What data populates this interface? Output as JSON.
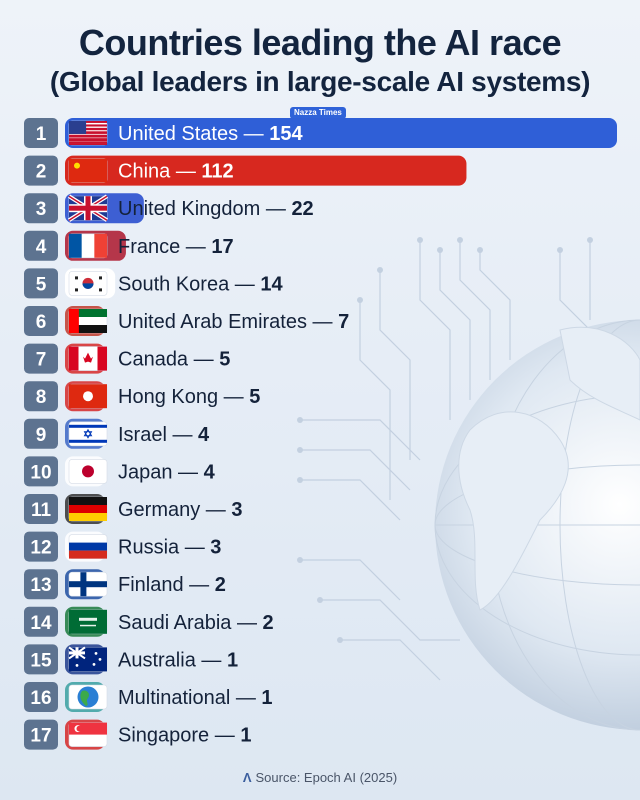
{
  "header": {
    "title": "Countries leading the AI race",
    "subtitle": "(Global leaders in large-scale AI systems)",
    "badge": "Nazza Times"
  },
  "footer": {
    "source": "Source: Epoch AI (2025)",
    "source_icon": "epoch-logo-icon"
  },
  "colors": {
    "united_states": "#2f5fd7",
    "china": "#d7281f",
    "united_kingdom": "#3d5fd3",
    "rank_box": "#5d7390",
    "text": "#14223a"
  },
  "chart_data": {
    "type": "bar",
    "orientation": "horizontal",
    "title": "Countries leading the AI race",
    "subtitle": "(Global leaders in large-scale AI systems)",
    "source": "Source: Epoch AI (2025)",
    "categories": [
      "United States",
      "China",
      "United Kingdom",
      "France",
      "South Korea",
      "United Arab Emirates",
      "Canada",
      "Hong Kong",
      "Israel",
      "Japan",
      "Germany",
      "Russia",
      "Finland",
      "Saudi Arabia",
      "Australia",
      "Multinational",
      "Singapore"
    ],
    "ranks": [
      "1",
      "2",
      "3",
      "4",
      "5",
      "6",
      "7",
      "8",
      "9",
      "10",
      "11",
      "12",
      "13",
      "14",
      "15",
      "16",
      "17"
    ],
    "values": [
      154,
      112,
      22,
      17,
      14,
      7,
      5,
      5,
      4,
      4,
      3,
      3,
      2,
      2,
      1,
      1,
      1
    ],
    "flags": [
      "us-flag-icon",
      "china-flag-icon",
      "uk-flag-icon",
      "france-flag-icon",
      "south-korea-flag-icon",
      "uae-flag-icon",
      "canada-flag-icon",
      "hong-kong-flag-icon",
      "israel-flag-icon",
      "japan-flag-icon",
      "germany-flag-icon",
      "russia-flag-icon",
      "finland-flag-icon",
      "saudi-arabia-flag-icon",
      "australia-flag-icon",
      "globe-icon",
      "singapore-flag-icon"
    ],
    "bar_colors": [
      "#2f5fd7",
      "#d7281f",
      "#3d5fd3",
      "#b5364a",
      "#ffffff",
      "#c0392b",
      "#d62828",
      "#d62828",
      "#3b66c4",
      "#ffffff",
      "#333333",
      "#ffffff",
      "#1f4fa0",
      "#1a7a3c",
      "#1d3b8b",
      "#3aa0a0",
      "#d62828"
    ],
    "xlim": [
      0,
      154
    ],
    "legend": "none",
    "grid": false
  }
}
